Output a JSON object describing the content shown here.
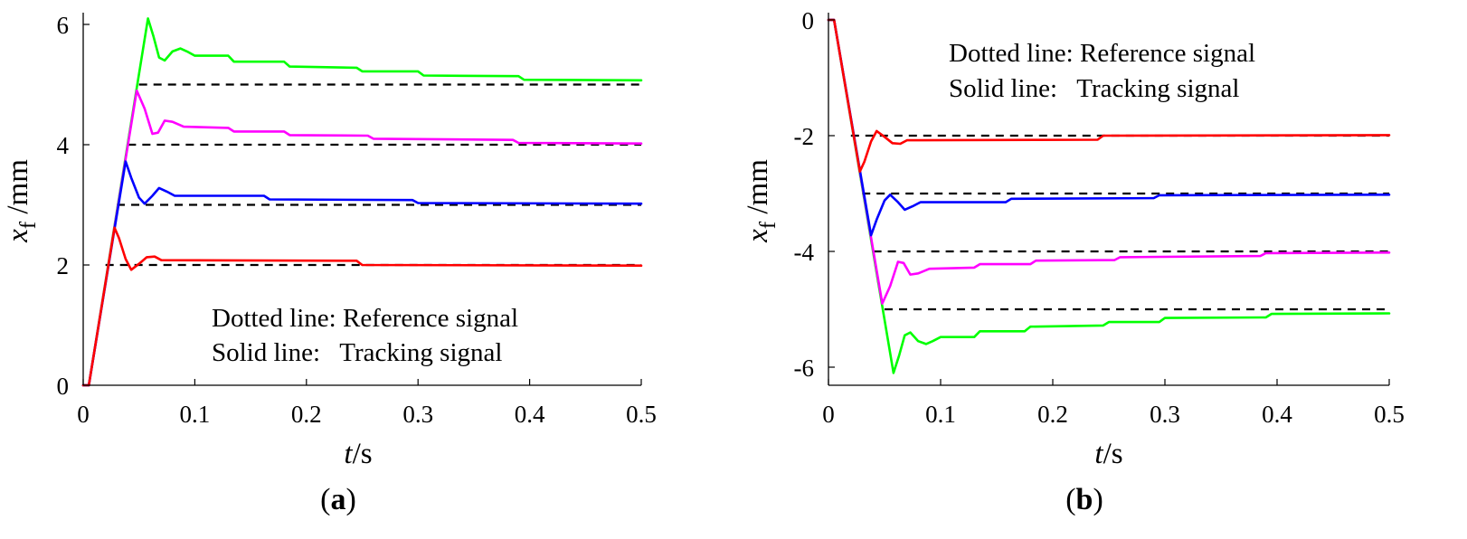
{
  "colors": {
    "red": "#ff0000",
    "blue": "#0000ff",
    "magenta": "#ff00ff",
    "green": "#00ff00",
    "reference": "#000000",
    "axis": "#000000"
  },
  "chart_data": [
    {
      "type": "line",
      "panel_label": {
        "open": "(",
        "letter": "a",
        "close": ")"
      },
      "xlabel": {
        "main": "t",
        "rest": "/s"
      },
      "ylabel": {
        "main": "x",
        "sub": "f",
        "rest": " /mm"
      },
      "xlim": [
        0,
        0.5
      ],
      "ylim": [
        0,
        6.3
      ],
      "xticks": [
        0,
        0.1,
        0.2,
        0.3,
        0.4,
        0.5
      ],
      "xtick_labels": [
        "0",
        "0.1",
        "0.2",
        "0.3",
        "0.4",
        "0.5"
      ],
      "yticks": [
        0,
        2,
        4,
        6
      ],
      "ytick_labels": [
        "0",
        "2",
        "4",
        "6"
      ],
      "annotations": [
        "Dotted line: Reference signal",
        "Solid line:   Tracking signal"
      ],
      "reference_lines": [
        {
          "value": 2,
          "x_start": 0.02,
          "x_end": 0.5
        },
        {
          "value": 3,
          "x_start": 0.03,
          "x_end": 0.5
        },
        {
          "value": 4,
          "x_start": 0.04,
          "x_end": 0.5
        },
        {
          "value": 5,
          "x_start": 0.05,
          "x_end": 0.5
        }
      ],
      "series": [
        {
          "name": "green",
          "color_key": "green",
          "x": [
            0,
            0.005,
            0.058,
            0.063,
            0.068,
            0.073,
            0.08,
            0.087,
            0.093,
            0.1,
            0.13,
            0.135,
            0.18,
            0.185,
            0.245,
            0.25,
            0.3,
            0.305,
            0.39,
            0.395,
            0.5
          ],
          "y": [
            0,
            0,
            6.1,
            5.8,
            5.45,
            5.4,
            5.55,
            5.6,
            5.55,
            5.48,
            5.48,
            5.38,
            5.38,
            5.3,
            5.28,
            5.22,
            5.22,
            5.15,
            5.14,
            5.08,
            5.07
          ]
        },
        {
          "name": "magenta",
          "color_key": "magenta",
          "x": [
            0,
            0.005,
            0.048,
            0.055,
            0.062,
            0.067,
            0.073,
            0.08,
            0.09,
            0.13,
            0.135,
            0.18,
            0.185,
            0.255,
            0.26,
            0.385,
            0.39,
            0.5
          ],
          "y": [
            0,
            0,
            4.9,
            4.6,
            4.18,
            4.2,
            4.4,
            4.38,
            4.3,
            4.28,
            4.22,
            4.22,
            4.16,
            4.15,
            4.1,
            4.08,
            4.03,
            4.02
          ]
        },
        {
          "name": "blue",
          "color_key": "blue",
          "x": [
            0,
            0.005,
            0.038,
            0.043,
            0.05,
            0.055,
            0.062,
            0.068,
            0.075,
            0.082,
            0.162,
            0.167,
            0.295,
            0.3,
            0.5
          ],
          "y": [
            0,
            0,
            3.72,
            3.45,
            3.12,
            3.02,
            3.15,
            3.28,
            3.22,
            3.15,
            3.15,
            3.09,
            3.08,
            3.03,
            3.02
          ]
        },
        {
          "name": "red",
          "color_key": "red",
          "x": [
            0,
            0.005,
            0.028,
            0.032,
            0.038,
            0.043,
            0.05,
            0.057,
            0.064,
            0.07,
            0.245,
            0.25,
            0.5
          ],
          "y": [
            0,
            0,
            2.62,
            2.45,
            2.1,
            1.92,
            2.02,
            2.13,
            2.14,
            2.08,
            2.07,
            2.0,
            1.99
          ]
        }
      ]
    },
    {
      "type": "line",
      "panel_label": {
        "open": "(",
        "letter": "b",
        "close": ")"
      },
      "xlabel": {
        "main": "t",
        "rest": "/s"
      },
      "ylabel": {
        "main": "x",
        "sub": "f",
        "rest": " /mm"
      },
      "xlim": [
        0,
        0.5
      ],
      "ylim": [
        -6.3,
        0
      ],
      "xticks": [
        0,
        0.1,
        0.2,
        0.3,
        0.4,
        0.5
      ],
      "xtick_labels": [
        "0",
        "0.1",
        "0.2",
        "0.3",
        "0.4",
        "0.5"
      ],
      "yticks": [
        0,
        -2,
        -4,
        -6
      ],
      "ytick_labels": [
        "0",
        "-2",
        "-4",
        "-6"
      ],
      "annotations": [
        "Dotted line: Reference signal",
        "Solid line:   Tracking signal"
      ],
      "reference_lines": [
        {
          "value": -2,
          "x_start": 0.02,
          "x_end": 0.5
        },
        {
          "value": -3,
          "x_start": 0.03,
          "x_end": 0.5
        },
        {
          "value": -4,
          "x_start": 0.04,
          "x_end": 0.5
        },
        {
          "value": -5,
          "x_start": 0.05,
          "x_end": 0.5
        }
      ],
      "series": [
        {
          "name": "green",
          "color_key": "green",
          "x": [
            0,
            0.005,
            0.058,
            0.063,
            0.068,
            0.073,
            0.08,
            0.087,
            0.093,
            0.1,
            0.13,
            0.135,
            0.175,
            0.18,
            0.245,
            0.25,
            0.295,
            0.3,
            0.39,
            0.395,
            0.5
          ],
          "y": [
            0,
            0,
            -6.1,
            -5.8,
            -5.45,
            -5.4,
            -5.55,
            -5.6,
            -5.55,
            -5.48,
            -5.48,
            -5.38,
            -5.38,
            -5.3,
            -5.28,
            -5.22,
            -5.22,
            -5.15,
            -5.14,
            -5.08,
            -5.07
          ]
        },
        {
          "name": "magenta",
          "color_key": "magenta",
          "x": [
            0,
            0.005,
            0.048,
            0.055,
            0.062,
            0.067,
            0.073,
            0.08,
            0.09,
            0.13,
            0.135,
            0.18,
            0.185,
            0.255,
            0.26,
            0.385,
            0.39,
            0.5
          ],
          "y": [
            0,
            0,
            -4.9,
            -4.6,
            -4.18,
            -4.2,
            -4.4,
            -4.38,
            -4.3,
            -4.28,
            -4.22,
            -4.22,
            -4.16,
            -4.15,
            -4.1,
            -4.08,
            -4.03,
            -4.02
          ]
        },
        {
          "name": "blue",
          "color_key": "blue",
          "x": [
            0,
            0.005,
            0.038,
            0.043,
            0.05,
            0.055,
            0.062,
            0.068,
            0.075,
            0.082,
            0.158,
            0.163,
            0.29,
            0.295,
            0.5
          ],
          "y": [
            0,
            0,
            -3.72,
            -3.45,
            -3.12,
            -3.02,
            -3.15,
            -3.28,
            -3.22,
            -3.15,
            -3.15,
            -3.09,
            -3.08,
            -3.03,
            -3.02
          ]
        },
        {
          "name": "red",
          "color_key": "red",
          "x": [
            0,
            0.005,
            0.028,
            0.032,
            0.038,
            0.043,
            0.05,
            0.057,
            0.064,
            0.07,
            0.24,
            0.245,
            0.5
          ],
          "y": [
            0,
            0,
            -2.62,
            -2.45,
            -2.1,
            -1.92,
            -2.02,
            -2.13,
            -2.14,
            -2.08,
            -2.07,
            -2.0,
            -1.99
          ]
        }
      ]
    }
  ]
}
